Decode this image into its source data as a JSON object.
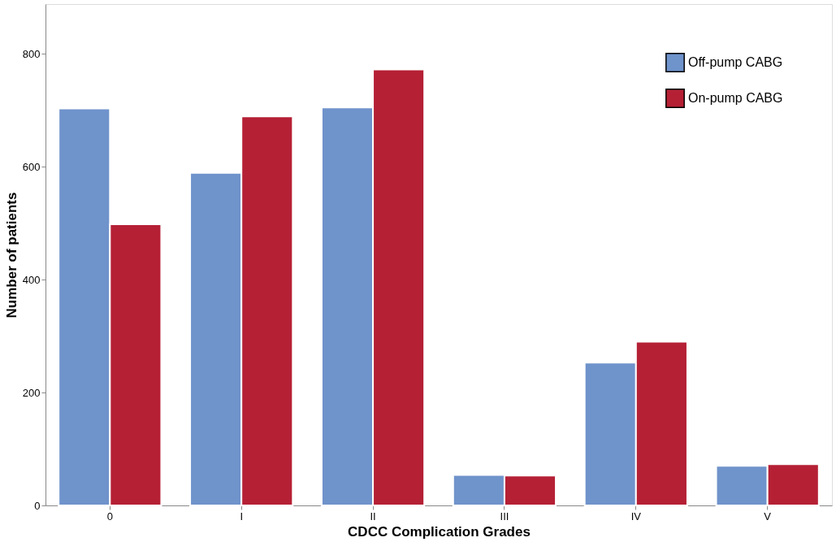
{
  "chart_data": {
    "type": "bar",
    "xlabel": "CDCC Complication Grades",
    "ylabel": "Number of patients",
    "categories": [
      "0",
      "I",
      "II",
      "III",
      "IV",
      "V"
    ],
    "series": [
      {
        "name": "Off-pump CABG",
        "color": "#6f93cb",
        "values": [
          703,
          589,
          705,
          54,
          253,
          70
        ]
      },
      {
        "name": "On-pump CABG",
        "color": "#b52035",
        "values": [
          498,
          689,
          772,
          53,
          290,
          73
        ]
      }
    ],
    "ylim": [
      0,
      888
    ],
    "yticks": [
      0,
      200,
      400,
      600,
      800
    ],
    "grid": false,
    "legend": "top right"
  }
}
